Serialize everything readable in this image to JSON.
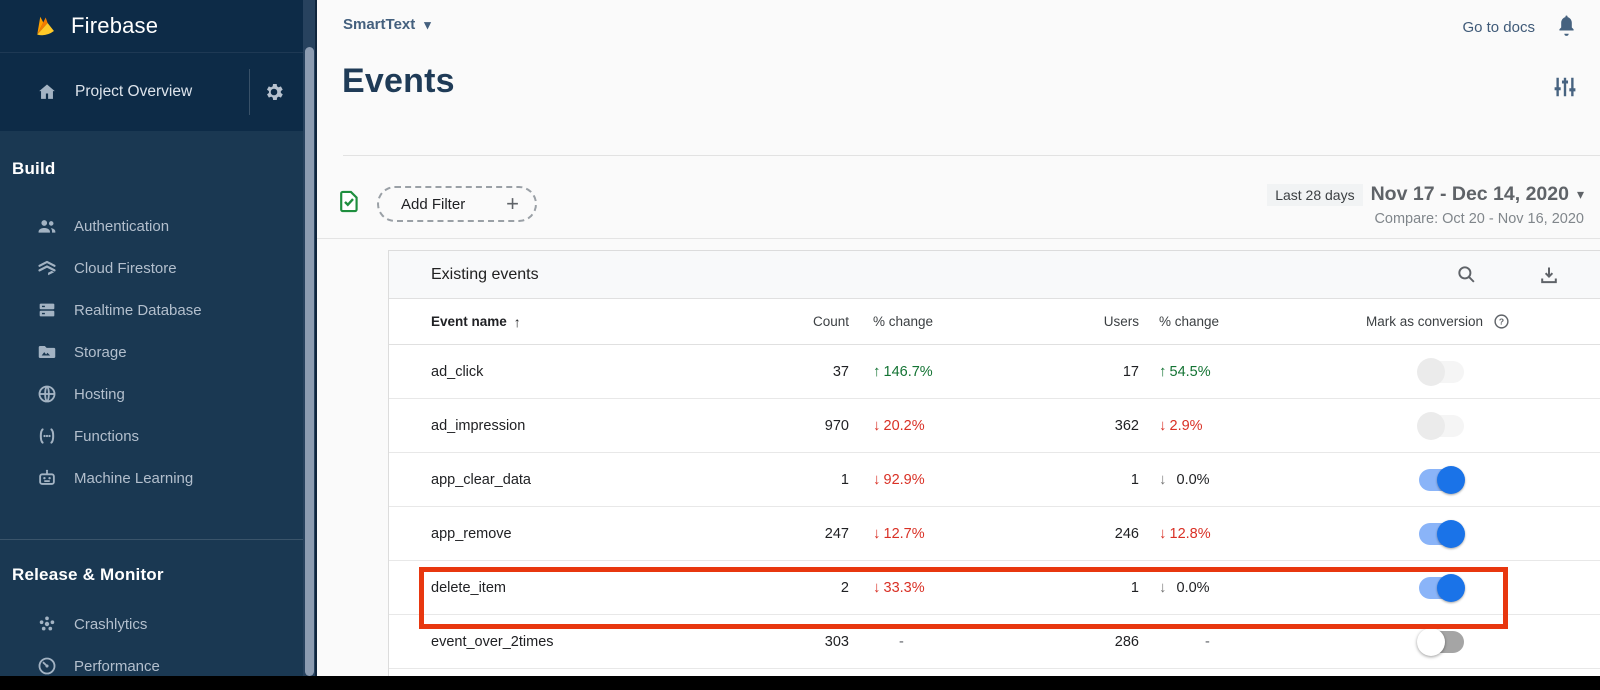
{
  "app": {
    "brand": "Firebase",
    "go_to_docs": "Go to docs"
  },
  "sidebar": {
    "project_overview": "Project Overview",
    "sections": [
      {
        "label": "Build",
        "items": [
          {
            "icon": "authentication-icon",
            "label": "Authentication"
          },
          {
            "icon": "cloud-firestore-icon",
            "label": "Cloud Firestore"
          },
          {
            "icon": "realtime-database-icon",
            "label": "Realtime Database"
          },
          {
            "icon": "storage-icon",
            "label": "Storage"
          },
          {
            "icon": "hosting-icon",
            "label": "Hosting"
          },
          {
            "icon": "functions-icon",
            "label": "Functions"
          },
          {
            "icon": "machine-learning-icon",
            "label": "Machine Learning"
          }
        ]
      },
      {
        "label": "Release & Monitor",
        "items": [
          {
            "icon": "crashlytics-icon",
            "label": "Crashlytics"
          },
          {
            "icon": "performance-icon",
            "label": "Performance"
          }
        ]
      }
    ]
  },
  "header": {
    "project_selector": "SmartText",
    "page_title": "Events"
  },
  "filter_bar": {
    "add_filter_label": "Add Filter",
    "date_range_badge": "Last 28 days",
    "date_range": "Nov 17 - Dec 14, 2020",
    "compare": "Compare: Oct 20 - Nov 16, 2020"
  },
  "table": {
    "card_title": "Existing events",
    "columns": [
      "Event name",
      "Count",
      "% change",
      "Users",
      "% change",
      "Mark as conversion"
    ],
    "rows": [
      {
        "name": "ad_click",
        "count": "37",
        "count_change": {
          "dir": "up",
          "value": "146.7%"
        },
        "users": "17",
        "users_change": {
          "dir": "up",
          "value": "54.5%"
        },
        "toggle": "disabled",
        "highlight": false
      },
      {
        "name": "ad_impression",
        "count": "970",
        "count_change": {
          "dir": "down",
          "value": "20.2%"
        },
        "users": "362",
        "users_change": {
          "dir": "down",
          "value": "2.9%"
        },
        "toggle": "disabled",
        "highlight": false
      },
      {
        "name": "app_clear_data",
        "count": "1",
        "count_change": {
          "dir": "down",
          "value": "92.9%"
        },
        "users": "1",
        "users_change": {
          "dir": "flat",
          "value": "0.0%"
        },
        "toggle": "on",
        "highlight": false
      },
      {
        "name": "app_remove",
        "count": "247",
        "count_change": {
          "dir": "down",
          "value": "12.7%"
        },
        "users": "246",
        "users_change": {
          "dir": "down",
          "value": "12.8%"
        },
        "toggle": "on",
        "highlight": false
      },
      {
        "name": "delete_item",
        "count": "2",
        "count_change": {
          "dir": "down",
          "value": "33.3%"
        },
        "users": "1",
        "users_change": {
          "dir": "flat",
          "value": "0.0%"
        },
        "toggle": "on",
        "highlight": true
      },
      {
        "name": "event_over_2times",
        "count": "303",
        "count_change": {
          "dir": "none",
          "value": "-"
        },
        "users": "286",
        "users_change": {
          "dir": "none",
          "value": "-"
        },
        "toggle": "off",
        "highlight": false
      }
    ]
  },
  "colors": {
    "sidebar_bg": "#1a3852",
    "sidebar_header_bg": "#0d2b47",
    "accent_blue": "#1a73e8",
    "toggle_track_on": "#8ab4f8",
    "positive_green": "#137333",
    "negative_red": "#d93025",
    "filter_check_green": "#1e8e3e",
    "highlight_red": "#e8370f",
    "flame_yellow": "#ffca28",
    "flame_orange": "#ffa000",
    "flame_dark_orange": "#f57c00"
  }
}
